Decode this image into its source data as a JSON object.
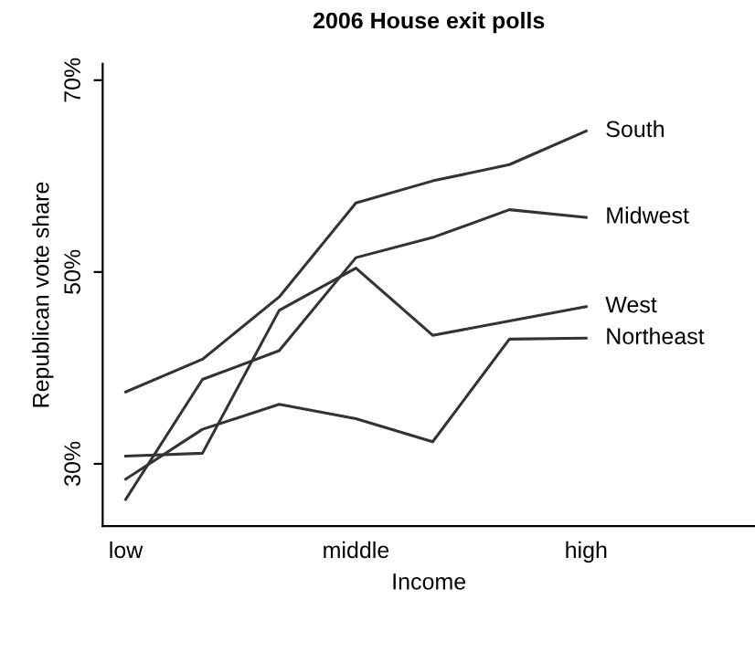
{
  "chart_data": {
    "type": "line",
    "title": "2006 House exit polls",
    "xlabel": "Income",
    "ylabel": "Republican vote share",
    "categories": [
      "low",
      null,
      null,
      "middle",
      null,
      null,
      "high"
    ],
    "series": [
      {
        "name": "South",
        "color": "#333333",
        "values": [
          37.5,
          40.9,
          47.4,
          57.2,
          59.5,
          61.2,
          64.7
        ]
      },
      {
        "name": "Midwest",
        "color": "#333333",
        "values": [
          26.3,
          38.8,
          41.8,
          51.5,
          53.6,
          56.5,
          55.7
        ]
      },
      {
        "name": "West",
        "color": "#333333",
        "values": [
          30.8,
          31.1,
          46.0,
          50.4,
          43.4,
          44.9,
          46.4
        ]
      },
      {
        "name": "Northeast",
        "color": "#333333",
        "values": [
          28.4,
          33.6,
          36.2,
          34.7,
          32.3,
          43.0,
          43.1
        ]
      }
    ],
    "ylim": [
      23.5,
      71.7
    ],
    "yticks": [
      {
        "value": 30,
        "label": "30%"
      },
      {
        "value": 50,
        "label": "50%"
      },
      {
        "value": 70,
        "label": "70%"
      }
    ],
    "grid": false,
    "legend": false,
    "marker": "none",
    "line_style": "solid"
  }
}
